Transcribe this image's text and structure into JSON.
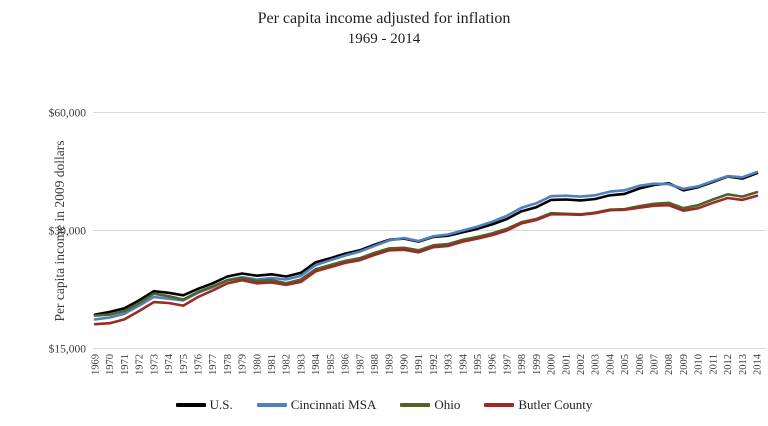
{
  "title": {
    "line1": "Per capita income adjusted for inflation",
    "line2": "1969 - 2014"
  },
  "y_axis": {
    "label": "Per capita income in 2009 dollars",
    "ticks": [
      {
        "label": "$60,000",
        "value": 60000
      },
      {
        "label": "$30,000",
        "value": 30000
      },
      {
        "label": "$15,000",
        "value": 15000
      }
    ],
    "scale": "log2",
    "range": [
      15000,
      60000
    ]
  },
  "colors": {
    "us": "#000000",
    "cincinnati_msa": "#4f81bd",
    "ohio": "#4f6228",
    "butler_county": "#9e2a25",
    "gridline": "#d9d9d9",
    "text": "#3b3b3b"
  },
  "chart_data": {
    "type": "line",
    "title": "Per capita income adjusted for inflation 1969 - 2014",
    "xlabel": "",
    "ylabel": "Per capita income in 2009 dollars",
    "y_scale": "log",
    "ylim": [
      15000,
      60000
    ],
    "gridlines": [
      60000,
      30000,
      15000
    ],
    "grid": "horizontal-only",
    "legend_position": "bottom",
    "x": [
      1969,
      1970,
      1971,
      1972,
      1973,
      1974,
      1975,
      1976,
      1977,
      1978,
      1979,
      1980,
      1981,
      1982,
      1983,
      1984,
      1985,
      1986,
      1987,
      1988,
      1989,
      1990,
      1991,
      1992,
      1993,
      1994,
      1995,
      1996,
      1997,
      1998,
      1999,
      2000,
      2001,
      2002,
      2003,
      2004,
      2005,
      2006,
      2007,
      2008,
      2009,
      2010,
      2011,
      2012,
      2013,
      2014
    ],
    "series": [
      {
        "name": "U.S.",
        "color": "#000000",
        "values": [
          18300,
          18600,
          19000,
          19900,
          21000,
          20800,
          20500,
          21300,
          22000,
          22900,
          23300,
          23000,
          23200,
          22900,
          23400,
          24900,
          25500,
          26200,
          26700,
          27600,
          28400,
          28600,
          28100,
          28900,
          29100,
          29700,
          30300,
          31100,
          32100,
          33600,
          34400,
          35900,
          36000,
          35800,
          36100,
          36900,
          37200,
          38400,
          39200,
          39600,
          38000,
          38700,
          39900,
          41200,
          40700,
          42000
        ]
      },
      {
        "name": "Cincinnati MSA",
        "color": "#4f81bd",
        "values": [
          17800,
          18000,
          18400,
          19300,
          20300,
          20100,
          19900,
          20800,
          21500,
          22400,
          22800,
          22500,
          22700,
          22500,
          23000,
          24500,
          25200,
          25900,
          26500,
          27400,
          28300,
          28700,
          28200,
          29000,
          29300,
          30000,
          30700,
          31600,
          32700,
          34300,
          35200,
          36700,
          36800,
          36600,
          36900,
          37700,
          38000,
          39000,
          39500,
          39400,
          38300,
          38900,
          40100,
          41300,
          41000,
          42300
        ]
      },
      {
        "name": "Ohio",
        "color": "#4f6228",
        "values": [
          18200,
          18300,
          18700,
          19600,
          20700,
          20400,
          20000,
          20900,
          21600,
          22400,
          22700,
          22300,
          22400,
          22000,
          22500,
          23900,
          24500,
          25100,
          25500,
          26300,
          27000,
          27100,
          26700,
          27500,
          27700,
          28400,
          28900,
          29500,
          30300,
          31500,
          32100,
          33200,
          33100,
          33000,
          33300,
          33900,
          34000,
          34600,
          35100,
          35300,
          34200,
          34800,
          36000,
          37100,
          36600,
          37600
        ]
      },
      {
        "name": "Butler County",
        "color": "#9e2a25",
        "values": [
          17300,
          17400,
          17800,
          18700,
          19700,
          19600,
          19300,
          20300,
          21100,
          22000,
          22400,
          22000,
          22100,
          21800,
          22200,
          23600,
          24200,
          24800,
          25200,
          26000,
          26700,
          26800,
          26400,
          27200,
          27400,
          28100,
          28600,
          29200,
          30000,
          31300,
          31900,
          33000,
          33000,
          32900,
          33200,
          33800,
          33900,
          34300,
          34700,
          34800,
          33700,
          34200,
          35300,
          36300,
          35900,
          36800
        ]
      }
    ]
  }
}
